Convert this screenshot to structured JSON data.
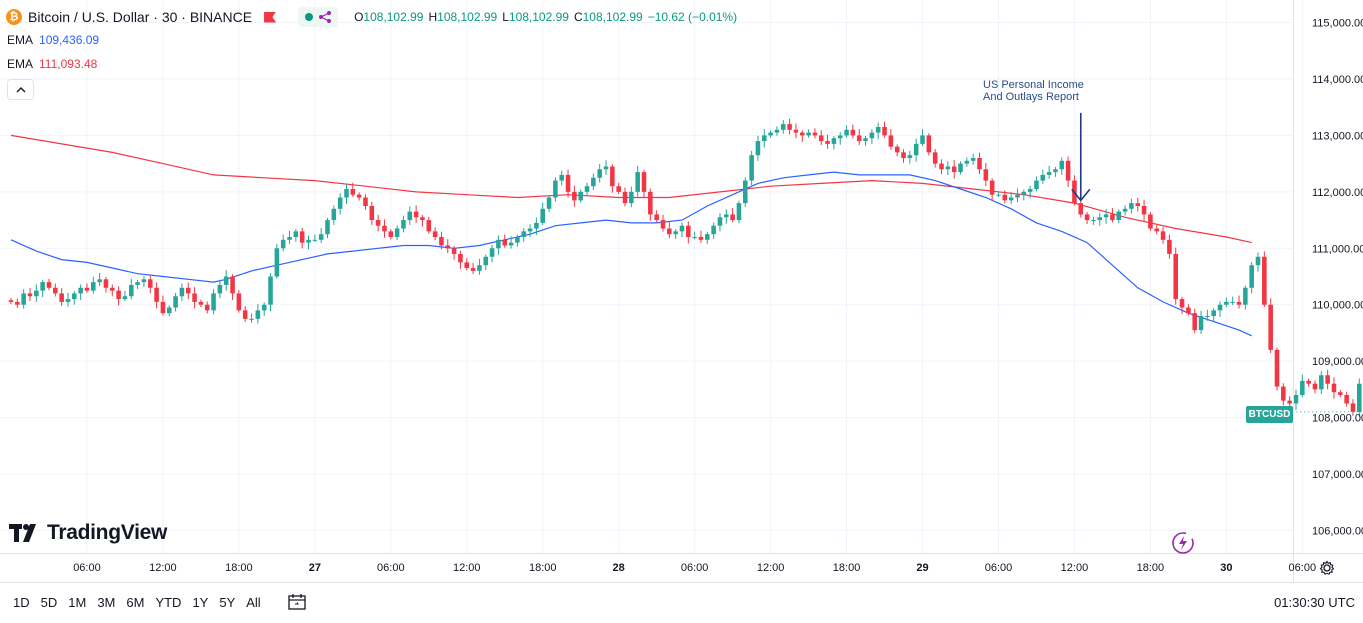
{
  "header": {
    "symbol_title": "Bitcoin / U.S. Dollar · 30 · BINANCE",
    "ohlc": {
      "o_label": "O",
      "o": "108,102.99",
      "h_label": "H",
      "h": "108,102.99",
      "l_label": "L",
      "l": "108,102.99",
      "c_label": "C",
      "c": "108,102.99",
      "change": "−10.62 (−0.01%)"
    },
    "icons": [
      "bitcoin-icon",
      "flag-icon",
      "dot-icon",
      "share-icon"
    ]
  },
  "indicators": [
    {
      "label": "EMA",
      "value": "109,436.09",
      "color": "#2962ff"
    },
    {
      "label": "EMA",
      "value": "111,093.48",
      "color": "#f23645"
    }
  ],
  "collapse_symbol": "^",
  "annotation": {
    "line1": "US Personal Income",
    "line2": "And Outlays Report",
    "color": "#2a4b8d"
  },
  "logo_text": "TradingView",
  "last_price_tag": "BTCUSD",
  "bottom_bar": {
    "ranges": [
      "1D",
      "5D",
      "1M",
      "3M",
      "6M",
      "YTD",
      "1Y",
      "5Y",
      "All"
    ],
    "clock": "01:30:30 UTC"
  },
  "colors": {
    "up": "#089981",
    "up_fill": "#26a69a",
    "down": "#f23645",
    "grid": "#f0f3fa"
  },
  "chart_data": {
    "type": "candlestick",
    "title": "Bitcoin / U.S. Dollar · 30 · BINANCE",
    "y_axis": {
      "ticks": [
        106000,
        107000,
        108000,
        109000,
        110000,
        111000,
        112000,
        113000,
        114000,
        115000
      ],
      "tick_labels": [
        "106,000.00",
        "107,000.00",
        "108,000.00",
        "109,000.00",
        "110,000.00",
        "111,000.00",
        "112,000.00",
        "113,000.00",
        "114,000.00",
        "115,000.00"
      ],
      "range": [
        105600,
        115400
      ]
    },
    "x_axis": {
      "tick_labels": [
        "06:00",
        "12:00",
        "18:00",
        "27",
        "06:00",
        "12:00",
        "18:00",
        "28",
        "06:00",
        "12:00",
        "18:00",
        "29",
        "06:00",
        "12:00",
        "18:00",
        "30",
        "06:00"
      ],
      "tick_hours": [
        6,
        12,
        18,
        24,
        30,
        36,
        42,
        48,
        54,
        60,
        66,
        72,
        78,
        84,
        90,
        96,
        102
      ],
      "range_hours": [
        0,
        112
      ]
    },
    "interval_hours": 0.5,
    "start_hour": 0,
    "close": [
      110050,
      110000,
      110200,
      110150,
      110250,
      110400,
      110300,
      110200,
      110050,
      110100,
      110200,
      110300,
      110250,
      110400,
      110450,
      110300,
      110250,
      110100,
      110150,
      110350,
      110400,
      110450,
      110300,
      110050,
      109850,
      109950,
      110150,
      110300,
      110200,
      110050,
      110000,
      109900,
      110200,
      110350,
      110500,
      110200,
      109900,
      109750,
      109750,
      109900,
      110000,
      110500,
      111000,
      111150,
      111200,
      111300,
      111100,
      111150,
      111150,
      111250,
      111500,
      111700,
      111900,
      112050,
      111950,
      111900,
      111750,
      111500,
      111400,
      111300,
      111200,
      111350,
      111500,
      111650,
      111550,
      111500,
      111300,
      111200,
      111050,
      111000,
      110900,
      110750,
      110650,
      110600,
      110700,
      110850,
      111000,
      111150,
      111050,
      111100,
      111200,
      111300,
      111350,
      111450,
      111700,
      111900,
      112200,
      112300,
      112000,
      111850,
      112000,
      112100,
      112250,
      112400,
      112450,
      112100,
      112000,
      111800,
      112000,
      112350,
      112000,
      111600,
      111500,
      111350,
      111250,
      111300,
      111400,
      111200,
      111200,
      111150,
      111250,
      111400,
      111550,
      111600,
      111500,
      111800,
      112200,
      112650,
      112900,
      113000,
      113050,
      113100,
      113200,
      113100,
      113050,
      113000,
      113050,
      113000,
      112900,
      112850,
      112950,
      113000,
      113100,
      113000,
      112900,
      112950,
      113050,
      113150,
      113000,
      112800,
      112700,
      112600,
      112650,
      112850,
      113000,
      112700,
      112500,
      112400,
      112450,
      112350,
      112500,
      112550,
      112600,
      112400,
      112200,
      111950,
      111950,
      111850,
      111900,
      111950,
      112000,
      112050,
      112200,
      112300,
      112350,
      112400,
      112550,
      112200,
      111800,
      111600,
      111500,
      111500,
      111550,
      111600,
      111500,
      111650,
      111700,
      111800,
      111750,
      111600,
      111350,
      111300,
      111150,
      110900,
      110100,
      109950,
      109850,
      109550,
      109800,
      109800,
      109900,
      110000,
      110050,
      110050,
      110000,
      110300,
      110700,
      110850,
      110000,
      109200,
      108550,
      108300,
      108250,
      108400,
      108650,
      108600,
      108500,
      108750,
      108600,
      108450,
      108400,
      108250,
      108100,
      108600,
      108750,
      108350,
      108150,
      107900,
      107850,
      108050,
      108450,
      108500,
      108450,
      108500,
      108550,
      108600,
      108500,
      108450,
      108350,
      108400,
      108100,
      108100
    ],
    "ema_blue": [
      {
        "x": 0.0,
        "y": 111150
      },
      {
        "x": 2.0,
        "y": 110950
      },
      {
        "x": 4.0,
        "y": 110800
      },
      {
        "x": 6.0,
        "y": 110750
      },
      {
        "x": 8.0,
        "y": 110650
      },
      {
        "x": 10.0,
        "y": 110550
      },
      {
        "x": 12.0,
        "y": 110500
      },
      {
        "x": 14.0,
        "y": 110450
      },
      {
        "x": 16.0,
        "y": 110400
      },
      {
        "x": 17.0,
        "y": 110450
      },
      {
        "x": 19.0,
        "y": 110600
      },
      {
        "x": 21.0,
        "y": 110700
      },
      {
        "x": 23.0,
        "y": 110800
      },
      {
        "x": 25.0,
        "y": 110900
      },
      {
        "x": 27.0,
        "y": 110950
      },
      {
        "x": 29.0,
        "y": 111000
      },
      {
        "x": 31.0,
        "y": 111050
      },
      {
        "x": 33.0,
        "y": 111050
      },
      {
        "x": 35.0,
        "y": 111000
      },
      {
        "x": 37.0,
        "y": 111050
      },
      {
        "x": 39.0,
        "y": 111150
      },
      {
        "x": 41.0,
        "y": 111250
      },
      {
        "x": 43.0,
        "y": 111400
      },
      {
        "x": 45.0,
        "y": 111450
      },
      {
        "x": 47.0,
        "y": 111500
      },
      {
        "x": 49.0,
        "y": 111450
      },
      {
        "x": 51.0,
        "y": 111450
      },
      {
        "x": 53.0,
        "y": 111500
      },
      {
        "x": 55.0,
        "y": 111750
      },
      {
        "x": 57.0,
        "y": 111950
      },
      {
        "x": 59.0,
        "y": 112150
      },
      {
        "x": 61.0,
        "y": 112250
      },
      {
        "x": 63.0,
        "y": 112300
      },
      {
        "x": 65.0,
        "y": 112350
      },
      {
        "x": 67.0,
        "y": 112300
      },
      {
        "x": 69.0,
        "y": 112300
      },
      {
        "x": 71.0,
        "y": 112300
      },
      {
        "x": 73.0,
        "y": 112200
      },
      {
        "x": 75.0,
        "y": 112050
      },
      {
        "x": 77.0,
        "y": 111900
      },
      {
        "x": 79.0,
        "y": 111700
      },
      {
        "x": 81.0,
        "y": 111450
      },
      {
        "x": 83.0,
        "y": 111300
      },
      {
        "x": 85.0,
        "y": 111100
      },
      {
        "x": 87.0,
        "y": 110700
      },
      {
        "x": 89.0,
        "y": 110300
      },
      {
        "x": 91.0,
        "y": 110050
      },
      {
        "x": 93.0,
        "y": 109850
      },
      {
        "x": 95.0,
        "y": 109700
      },
      {
        "x": 97.0,
        "y": 109550
      },
      {
        "x": 98.0,
        "y": 109450
      }
    ],
    "ema_red": [
      {
        "x": 0.0,
        "y": 113000
      },
      {
        "x": 4.0,
        "y": 112850
      },
      {
        "x": 8.0,
        "y": 112700
      },
      {
        "x": 12.0,
        "y": 112500
      },
      {
        "x": 16.0,
        "y": 112300
      },
      {
        "x": 20.0,
        "y": 112250
      },
      {
        "x": 24.0,
        "y": 112200
      },
      {
        "x": 28.0,
        "y": 112100
      },
      {
        "x": 32.0,
        "y": 112000
      },
      {
        "x": 36.0,
        "y": 111950
      },
      {
        "x": 40.0,
        "y": 111900
      },
      {
        "x": 44.0,
        "y": 111950
      },
      {
        "x": 48.0,
        "y": 111900
      },
      {
        "x": 52.0,
        "y": 111900
      },
      {
        "x": 56.0,
        "y": 112000
      },
      {
        "x": 60.0,
        "y": 112100
      },
      {
        "x": 64.0,
        "y": 112150
      },
      {
        "x": 68.0,
        "y": 112200
      },
      {
        "x": 72.0,
        "y": 112150
      },
      {
        "x": 76.0,
        "y": 112050
      },
      {
        "x": 80.0,
        "y": 111950
      },
      {
        "x": 84.0,
        "y": 111800
      },
      {
        "x": 88.0,
        "y": 111550
      },
      {
        "x": 92.0,
        "y": 111350
      },
      {
        "x": 96.0,
        "y": 111200
      },
      {
        "x": 98.0,
        "y": 111100
      }
    ],
    "annotation_arrow_hour": 84.5,
    "annotation_arrow_price_range": [
      111850,
      113400
    ]
  }
}
